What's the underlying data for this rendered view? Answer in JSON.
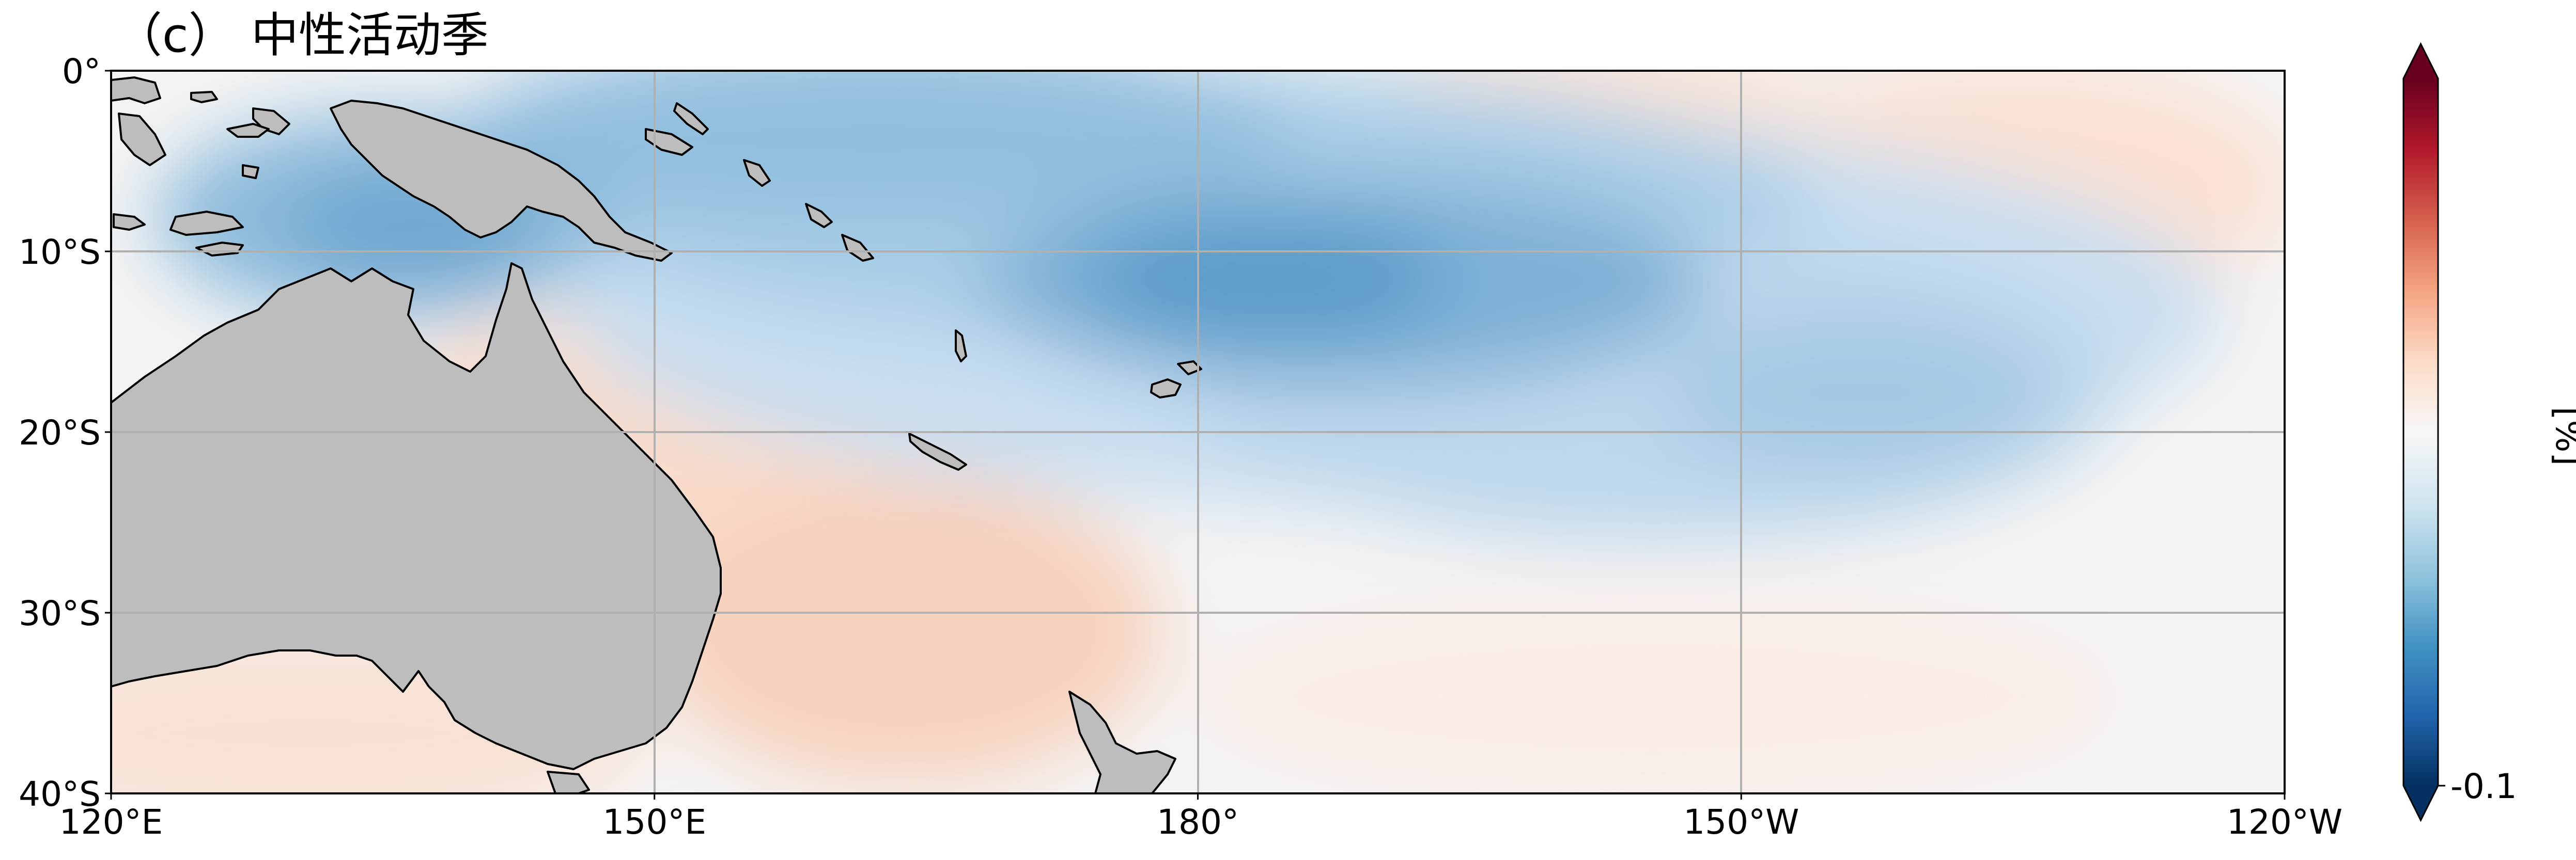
{
  "title": "（c） 中性活动季",
  "map": {
    "lon_range": [
      120,
      240
    ],
    "lat_range": [
      -40,
      0
    ],
    "lon_ticks": [
      {
        "value": 120,
        "label": "120°E"
      },
      {
        "value": 150,
        "label": "150°E"
      },
      {
        "value": 180,
        "label": "180°"
      },
      {
        "value": 210,
        "label": "150°W"
      },
      {
        "value": 240,
        "label": "120°W"
      }
    ],
    "lat_ticks": [
      {
        "value": 0,
        "label": "0°"
      },
      {
        "value": -10,
        "label": "10°S"
      },
      {
        "value": -20,
        "label": "20°S"
      },
      {
        "value": -30,
        "label": "30°S"
      },
      {
        "value": -40,
        "label": "40°S"
      }
    ],
    "gridlines": true,
    "land_color": "#bdbdbd",
    "coastline_color": "#000000"
  },
  "colorbar": {
    "colormap": "RdBu_r",
    "extend": "both",
    "tick_label": "-0.1",
    "unit_label": "[%]",
    "colors": [
      "#053061",
      "#2166ac",
      "#4393c3",
      "#92c5de",
      "#d1e5f0",
      "#f7f7f7",
      "#fddbc7",
      "#f4a582",
      "#d6604d",
      "#b2182b",
      "#67001f"
    ]
  }
}
